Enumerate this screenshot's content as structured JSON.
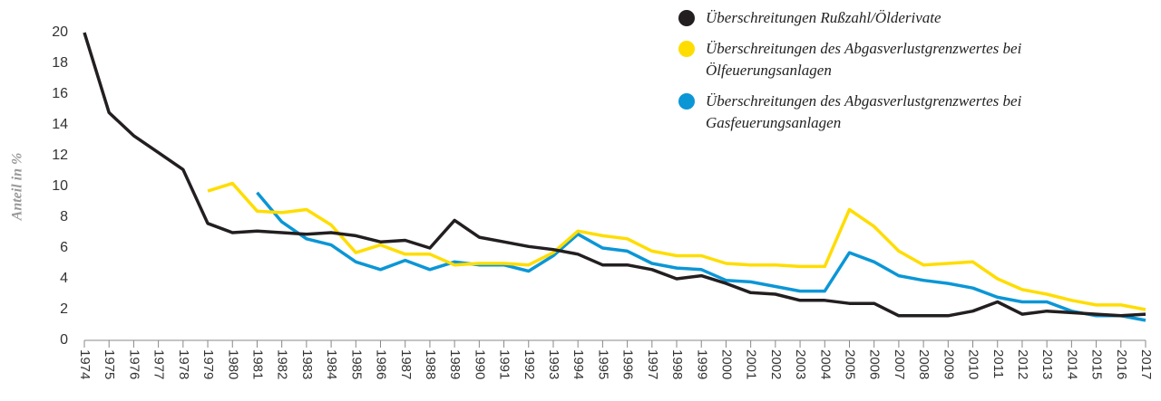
{
  "chart_data": {
    "type": "line",
    "y_label": "Anteil in %",
    "categories": [
      "1974",
      "1975",
      "1976",
      "1977",
      "1978",
      "1979",
      "1980",
      "1981",
      "1982",
      "1983",
      "1984",
      "1985",
      "1986",
      "1987",
      "1988",
      "1989",
      "1990",
      "1991",
      "1992",
      "1993",
      "1994",
      "1995",
      "1996",
      "1997",
      "1998",
      "1999",
      "2000",
      "2001",
      "2002",
      "2003",
      "2004",
      "2005",
      "2006",
      "2007",
      "2008",
      "2009",
      "2010",
      "2011",
      "2012",
      "2013",
      "2014",
      "2015",
      "2016",
      "2017"
    ],
    "series": [
      {
        "name": "Überschreitungen Rußzahl/Ölderivate",
        "color": "#231f20",
        "values": [
          20,
          14.8,
          13.3,
          12.2,
          11.1,
          7.6,
          7.0,
          7.1,
          7.0,
          6.9,
          7.0,
          6.8,
          6.4,
          6.5,
          6.0,
          7.8,
          6.7,
          6.4,
          6.1,
          5.9,
          5.6,
          4.9,
          4.9,
          4.6,
          4.0,
          4.2,
          3.7,
          3.1,
          3.0,
          2.6,
          2.6,
          2.4,
          2.4,
          1.6,
          1.6,
          1.6,
          1.9,
          2.5,
          1.7,
          1.9,
          1.8,
          1.7,
          1.6,
          1.7
        ]
      },
      {
        "name": "Überschreitungen des Abgasverlustgrenzwertes bei Ölfeuerungsanlagen",
        "color": "#ffdd00",
        "values": [
          null,
          null,
          null,
          null,
          null,
          9.7,
          10.2,
          8.4,
          8.3,
          8.5,
          7.5,
          5.7,
          6.2,
          5.6,
          5.6,
          4.9,
          5.0,
          5.0,
          4.9,
          5.7,
          7.1,
          6.8,
          6.6,
          5.8,
          5.5,
          5.5,
          5.0,
          4.9,
          4.9,
          4.8,
          4.8,
          8.5,
          7.4,
          5.8,
          4.9,
          5.0,
          5.1,
          4.0,
          3.3,
          3.0,
          2.6,
          2.3,
          2.3,
          2.0
        ]
      },
      {
        "name": "Überschreitungen des Abgasverlustgrenzwertes bei Gasfeuerungsanlagen",
        "color": "#0b96d6",
        "values": [
          null,
          null,
          null,
          null,
          null,
          null,
          null,
          9.6,
          7.7,
          6.6,
          6.2,
          5.1,
          4.6,
          5.2,
          4.6,
          5.1,
          4.9,
          4.9,
          4.5,
          5.5,
          6.9,
          6.0,
          5.8,
          5.0,
          4.7,
          4.6,
          3.9,
          3.8,
          3.5,
          3.2,
          3.2,
          5.7,
          5.1,
          4.2,
          3.9,
          3.7,
          3.4,
          2.8,
          2.5,
          2.5,
          1.9,
          1.6,
          1.6,
          1.3
        ]
      }
    ],
    "ylim": [
      0,
      20
    ],
    "yticks": [
      0,
      2,
      4,
      6,
      8,
      10,
      12,
      14,
      16,
      18,
      20
    ],
    "grid": false,
    "legend": "top-right"
  }
}
